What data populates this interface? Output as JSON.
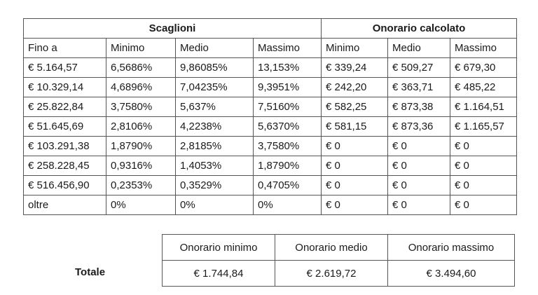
{
  "main_table": {
    "group_headers": [
      "Scaglioni",
      "Onorario calcolato"
    ],
    "column_headers": [
      "Fino a",
      "Minimo",
      "Medio",
      "Massimo",
      "Minimo",
      "Medio",
      "Massimo"
    ],
    "rows": [
      [
        "€ 5.164,57",
        "6,5686%",
        "9,86085%",
        "13,153%",
        "€ 339,24",
        "€ 509,27",
        "€ 679,30"
      ],
      [
        "€ 10.329,14",
        "4,6896%",
        "7,04235%",
        "9,3951%",
        "€ 242,20",
        "€ 363,71",
        "€ 485,22"
      ],
      [
        "€ 25.822,84",
        "3,7580%",
        "5,637%",
        "7,5160%",
        "€ 582,25",
        "€ 873,38",
        "€ 1.164,51"
      ],
      [
        "€ 51.645,69",
        "2,8106%",
        "4,2238%",
        "5,6370%",
        "€ 581,15",
        "€ 873,36",
        "€ 1.165,57"
      ],
      [
        "€ 103.291,38",
        "1,8790%",
        "2,8185%",
        "3,7580%",
        "€ 0",
        "€ 0",
        "€ 0"
      ],
      [
        "€ 258.228,45",
        "0,9316%",
        "1,4053%",
        "1,8790%",
        "€ 0",
        "€ 0",
        "€ 0"
      ],
      [
        "€ 516.456,90",
        "0,2353%",
        "0,3529%",
        "0,4705%",
        "€ 0",
        "€ 0",
        "€ 0"
      ],
      [
        "oltre",
        "0%",
        "0%",
        "0%",
        "€ 0",
        "€ 0",
        "€ 0"
      ]
    ]
  },
  "totals": {
    "label": "Totale",
    "headers": [
      "Onorario minimo",
      "Onorario medio",
      "Onorario massimo"
    ],
    "values": [
      "€ 1.744,84",
      "€ 2.619,72",
      "€ 3.494,60"
    ]
  }
}
